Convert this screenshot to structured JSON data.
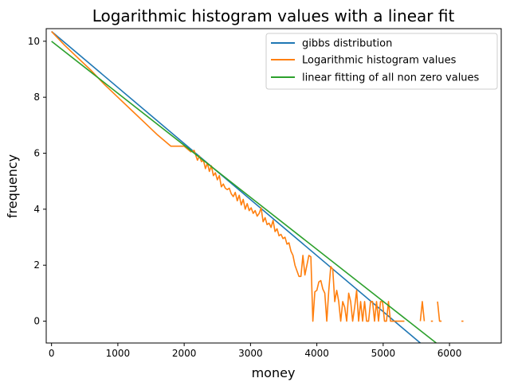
{
  "chart_data": {
    "type": "line",
    "title": "Logarithmic histogram values with a linear fit",
    "xlabel": "money",
    "ylabel": "frequency",
    "xlim": [
      -80,
      6780
    ],
    "ylim": [
      -0.78,
      10.45
    ],
    "xticks": [
      0,
      1000,
      2000,
      3000,
      4000,
      5000,
      6000
    ],
    "yticks": [
      0,
      2,
      4,
      6,
      8,
      10
    ],
    "grid": false,
    "legend_position": "top-right",
    "series": [
      {
        "name": "gibbs distribution",
        "color": "#1f77b4",
        "x": [
          0,
          5560
        ],
        "y": [
          10.35,
          -0.78
        ]
      },
      {
        "name": "Logarithmic histogram values",
        "color": "#ff7f0e",
        "x": [
          0,
          200,
          400,
          600,
          800,
          1000,
          1200,
          1400,
          1600,
          1800,
          2000,
          2100,
          2150,
          2200,
          2230,
          2260,
          2290,
          2320,
          2350,
          2380,
          2410,
          2440,
          2470,
          2500,
          2530,
          2560,
          2590,
          2620,
          2650,
          2680,
          2710,
          2740,
          2770,
          2800,
          2830,
          2860,
          2890,
          2920,
          2950,
          2980,
          3010,
          3040,
          3070,
          3100,
          3130,
          3160,
          3190,
          3220,
          3250,
          3280,
          3310,
          3340,
          3370,
          3400,
          3430,
          3460,
          3490,
          3520,
          3550,
          3580,
          3610,
          3640,
          3670,
          3700,
          3730,
          3760,
          3790,
          3820,
          3850,
          3880,
          3910,
          3940,
          3970,
          4000,
          4030,
          4060,
          4090,
          4120,
          4150,
          4180,
          4210,
          4240,
          4270,
          4300,
          4330,
          4360,
          4390,
          4420,
          4450,
          4480,
          4510,
          4540,
          4570,
          4600,
          4630,
          4660,
          4690,
          4720,
          4750,
          4780,
          4810,
          4840,
          4870,
          4900,
          4930,
          4960,
          4990,
          5020,
          5050,
          5080,
          5110,
          5140,
          5170,
          5200,
          5230,
          5260,
          5290,
          5320,
          null,
          5560,
          5590,
          5620,
          null,
          5720,
          5750,
          null,
          5820,
          5850,
          5880,
          null,
          6180,
          6210
        ],
        "y": [
          10.35,
          9.85,
          9.4,
          8.95,
          8.45,
          8.0,
          7.55,
          7.1,
          6.65,
          6.25,
          6.25,
          6.05,
          6.1,
          5.75,
          5.9,
          5.7,
          5.75,
          5.45,
          5.65,
          5.35,
          5.55,
          5.2,
          5.3,
          5.05,
          5.2,
          4.8,
          4.9,
          4.75,
          4.7,
          4.75,
          4.55,
          4.45,
          4.6,
          4.3,
          4.5,
          4.15,
          4.35,
          4.0,
          4.2,
          3.95,
          4.05,
          3.85,
          3.95,
          3.75,
          3.85,
          4.05,
          3.55,
          3.7,
          3.45,
          3.5,
          3.35,
          3.6,
          3.2,
          3.3,
          3.05,
          3.1,
          2.95,
          3.0,
          2.75,
          2.8,
          2.5,
          2.35,
          2.0,
          1.8,
          1.6,
          1.6,
          2.35,
          1.65,
          2.0,
          2.35,
          2.3,
          0.0,
          1.05,
          1.1,
          1.4,
          1.45,
          1.15,
          1.0,
          0.0,
          1.1,
          1.95,
          1.85,
          0.7,
          1.1,
          0.7,
          0.0,
          0.7,
          0.5,
          0.0,
          1.0,
          0.7,
          0.0,
          0.5,
          1.1,
          0.0,
          0.7,
          0.0,
          0.7,
          0.0,
          0.0,
          0.7,
          0.7,
          0.0,
          0.7,
          0.0,
          0.7,
          0.7,
          0.0,
          0.0,
          0.7,
          0.0,
          0.0,
          0.0,
          0.0,
          0.0,
          0.0,
          0.0,
          0.0,
          null,
          0.0,
          0.7,
          0.0,
          null,
          0.0,
          0.0,
          null,
          0.7,
          0.0,
          0.0,
          null,
          0.0,
          0.0
        ]
      },
      {
        "name": "linear fitting of all non zero values",
        "color": "#2ca02c",
        "x": [
          0,
          5800
        ],
        "y": [
          10.0,
          -0.78
        ]
      }
    ]
  }
}
